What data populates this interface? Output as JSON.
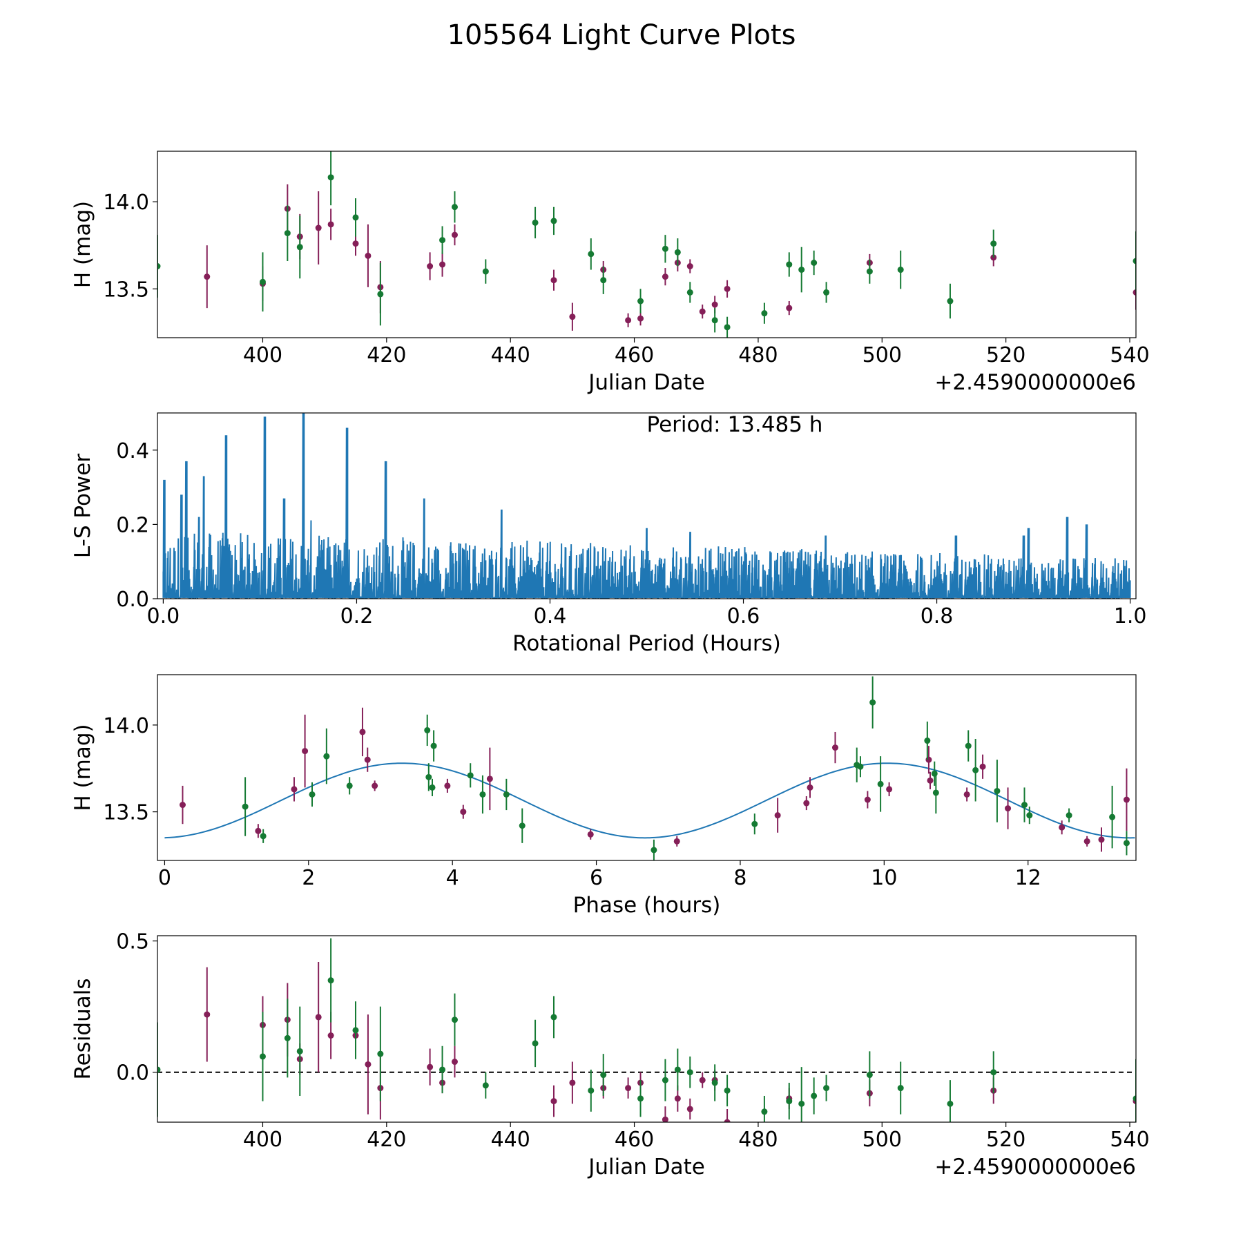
{
  "title": "105564 Light Curve Plots",
  "colors": {
    "series_a": "#851f58",
    "series_b": "#157a33",
    "line": "#1f77b4",
    "axes": "#000000"
  },
  "chart_data": [
    {
      "type": "scatter",
      "id": "lightcurve",
      "xlabel": "Julian Date",
      "ylabel": "H (mag)",
      "offset_label": "+2.4590000000e6",
      "xlim": [
        383,
        541
      ],
      "ylim": [
        13.22,
        14.29
      ],
      "xticks": [
        "400",
        "420",
        "440",
        "460",
        "480",
        "500",
        "520",
        "540"
      ],
      "yticks": [
        "13.5",
        "14.0"
      ],
      "series": [
        {
          "name": "series_a",
          "color": "#851f58",
          "points": [
            [
              391,
              13.57,
              0.18
            ],
            [
              400,
              13.53,
              0.1
            ],
            [
              404,
              13.96,
              0.14
            ],
            [
              406,
              13.8,
              0.13
            ],
            [
              409,
              13.85,
              0.21
            ],
            [
              411,
              13.87,
              0.09
            ],
            [
              415,
              13.76,
              0.07
            ],
            [
              417,
              13.69,
              0.18
            ],
            [
              419,
              13.51,
              0.15
            ],
            [
              427,
              13.63,
              0.08
            ],
            [
              429,
              13.64,
              0.07
            ],
            [
              431,
              13.81,
              0.06
            ],
            [
              447,
              13.55,
              0.06
            ],
            [
              450,
              13.34,
              0.08
            ],
            [
              455,
              13.61,
              0.05
            ],
            [
              459,
              13.32,
              0.04
            ],
            [
              461,
              13.33,
              0.04
            ],
            [
              465,
              13.57,
              0.05
            ],
            [
              467,
              13.65,
              0.05
            ],
            [
              469,
              13.63,
              0.04
            ],
            [
              471,
              13.37,
              0.04
            ],
            [
              473,
              13.41,
              0.05
            ],
            [
              475,
              13.5,
              0.05
            ],
            [
              485,
              13.39,
              0.04
            ],
            [
              498,
              13.65,
              0.05
            ],
            [
              518,
              13.68,
              0.05
            ],
            [
              541,
              13.48,
              0.1
            ]
          ]
        },
        {
          "name": "series_b",
          "color": "#157a33",
          "points": [
            [
              383,
              13.63,
              0.18
            ],
            [
              400,
              13.54,
              0.17
            ],
            [
              404,
              13.82,
              0.16
            ],
            [
              406,
              13.74,
              0.18
            ],
            [
              411,
              14.14,
              0.16
            ],
            [
              415,
              13.91,
              0.11
            ],
            [
              419,
              13.47,
              0.18
            ],
            [
              429,
              13.78,
              0.08
            ],
            [
              431,
              13.97,
              0.09
            ],
            [
              436,
              13.6,
              0.07
            ],
            [
              444,
              13.88,
              0.09
            ],
            [
              447,
              13.89,
              0.08
            ],
            [
              453,
              13.7,
              0.09
            ],
            [
              455,
              13.55,
              0.08
            ],
            [
              461,
              13.43,
              0.07
            ],
            [
              465,
              13.73,
              0.08
            ],
            [
              467,
              13.71,
              0.08
            ],
            [
              469,
              13.48,
              0.06
            ],
            [
              473,
              13.32,
              0.07
            ],
            [
              475,
              13.28,
              0.06
            ],
            [
              481,
              13.36,
              0.06
            ],
            [
              485,
              13.64,
              0.07
            ],
            [
              487,
              13.61,
              0.13
            ],
            [
              489,
              13.65,
              0.07
            ],
            [
              491,
              13.48,
              0.06
            ],
            [
              498,
              13.6,
              0.07
            ],
            [
              503,
              13.61,
              0.11
            ],
            [
              511,
              13.43,
              0.1
            ],
            [
              518,
              13.76,
              0.08
            ],
            [
              541,
              13.66,
              0.17
            ]
          ]
        }
      ]
    },
    {
      "type": "line",
      "id": "periodogram",
      "xlabel": "Rotational Period (Hours)",
      "ylabel": "L-S Power",
      "annotation": "Period: 13.485 h",
      "xlim": [
        -0.006,
        1.006
      ],
      "ylim": [
        0,
        0.5
      ],
      "xticks": [
        "0.0",
        "0.2",
        "0.4",
        "0.6",
        "0.8",
        "1.0"
      ],
      "yticks": [
        "0.0",
        "0.2",
        "0.4"
      ],
      "baseline_peak": 0.06,
      "prominent_peaks": [
        [
          0.001,
          0.32
        ],
        [
          0.019,
          0.28
        ],
        [
          0.024,
          0.37
        ],
        [
          0.037,
          0.22
        ],
        [
          0.042,
          0.33
        ],
        [
          0.065,
          0.44
        ],
        [
          0.105,
          0.49
        ],
        [
          0.125,
          0.27
        ],
        [
          0.145,
          0.51
        ],
        [
          0.19,
          0.46
        ],
        [
          0.23,
          0.37
        ],
        [
          0.27,
          0.27
        ],
        [
          0.35,
          0.24
        ],
        [
          0.5,
          0.19
        ],
        [
          0.545,
          0.18
        ],
        [
          0.685,
          0.17
        ],
        [
          0.82,
          0.17
        ],
        [
          0.89,
          0.17
        ],
        [
          0.895,
          0.19
        ],
        [
          0.935,
          0.22
        ],
        [
          0.955,
          0.2
        ]
      ]
    },
    {
      "type": "scatter",
      "id": "phased",
      "xlabel": "Phase (hours)",
      "ylabel": "H (mag)",
      "xlim": [
        -0.1,
        13.5
      ],
      "ylim": [
        13.22,
        14.29
      ],
      "xticks": [
        "0",
        "2",
        "4",
        "6",
        "8",
        "10",
        "12"
      ],
      "yticks": [
        "13.5",
        "14.0"
      ],
      "model": {
        "mean": 13.565,
        "amplitude": 0.215,
        "period_hours": 13.485,
        "phase_of_max": 3.3
      },
      "series": [
        {
          "name": "series_a",
          "color": "#851f58",
          "points": [
            [
              0.25,
              13.54,
              0.11
            ],
            [
              1.3,
              13.39,
              0.04
            ],
            [
              1.8,
              13.63,
              0.07
            ],
            [
              1.95,
              13.85,
              0.21
            ],
            [
              2.75,
              13.96,
              0.14
            ],
            [
              2.82,
              13.8,
              0.07
            ],
            [
              2.92,
              13.65,
              0.03
            ],
            [
              3.93,
              13.65,
              0.04
            ],
            [
              4.15,
              13.5,
              0.04
            ],
            [
              4.52,
              13.69,
              0.18
            ],
            [
              5.92,
              13.37,
              0.03
            ],
            [
              7.12,
              13.33,
              0.03
            ],
            [
              8.52,
              13.48,
              0.1
            ],
            [
              8.92,
              13.55,
              0.04
            ],
            [
              8.97,
              13.64,
              0.06
            ],
            [
              9.32,
              13.87,
              0.09
            ],
            [
              9.77,
              13.57,
              0.05
            ],
            [
              10.07,
              13.63,
              0.04
            ],
            [
              10.62,
              13.8,
              0.08
            ],
            [
              10.64,
              13.68,
              0.05
            ],
            [
              11.15,
              13.6,
              0.04
            ],
            [
              11.37,
              13.76,
              0.07
            ],
            [
              11.72,
              13.52,
              0.12
            ],
            [
              12.47,
              13.41,
              0.04
            ],
            [
              12.82,
              13.33,
              0.03
            ],
            [
              13.02,
              13.34,
              0.07
            ],
            [
              13.37,
              13.57,
              0.18
            ]
          ]
        },
        {
          "name": "series_b",
          "color": "#157a33",
          "points": [
            [
              1.12,
              13.53,
              0.17
            ],
            [
              1.37,
              13.36,
              0.04
            ],
            [
              2.05,
              13.6,
              0.07
            ],
            [
              2.25,
              13.82,
              0.16
            ],
            [
              2.57,
              13.65,
              0.05
            ],
            [
              3.65,
              13.97,
              0.09
            ],
            [
              3.67,
              13.7,
              0.08
            ],
            [
              3.72,
              13.64,
              0.05
            ],
            [
              3.74,
              13.88,
              0.09
            ],
            [
              4.25,
              13.71,
              0.07
            ],
            [
              4.42,
              13.6,
              0.11
            ],
            [
              4.75,
              13.6,
              0.09
            ],
            [
              4.97,
              13.42,
              0.1
            ],
            [
              6.8,
              13.28,
              0.06
            ],
            [
              8.2,
              13.43,
              0.06
            ],
            [
              9.62,
              13.77,
              0.1
            ],
            [
              9.67,
              13.76,
              0.06
            ],
            [
              9.84,
              14.13,
              0.15
            ],
            [
              9.95,
              13.66,
              0.16
            ],
            [
              10.6,
              13.91,
              0.11
            ],
            [
              10.7,
              13.72,
              0.07
            ],
            [
              10.72,
              13.61,
              0.12
            ],
            [
              11.17,
              13.88,
              0.09
            ],
            [
              11.27,
              13.74,
              0.18
            ],
            [
              11.57,
              13.62,
              0.18
            ],
            [
              11.95,
              13.54,
              0.1
            ],
            [
              12.02,
              13.48,
              0.05
            ],
            [
              12.57,
              13.48,
              0.04
            ],
            [
              13.17,
              13.47,
              0.18
            ],
            [
              13.37,
              13.32,
              0.07
            ]
          ]
        }
      ]
    },
    {
      "type": "scatter",
      "id": "residuals",
      "xlabel": "Julian Date",
      "ylabel": "Residuals",
      "offset_label": "+2.4590000000e6",
      "xlim": [
        383,
        541
      ],
      "ylim": [
        -0.19,
        0.52
      ],
      "xticks": [
        "400",
        "420",
        "440",
        "460",
        "480",
        "500",
        "520",
        "540"
      ],
      "yticks": [
        "0.0",
        "0.5"
      ],
      "reference_line": 0,
      "series": [
        {
          "name": "series_a",
          "color": "#851f58",
          "points": [
            [
              391,
              0.22,
              0.18
            ],
            [
              400,
              0.18,
              0.11
            ],
            [
              404,
              0.2,
              0.14
            ],
            [
              406,
              0.05,
              0.06
            ],
            [
              409,
              0.21,
              0.21
            ],
            [
              411,
              0.14,
              0.09
            ],
            [
              415,
              0.14,
              0.06
            ],
            [
              417,
              0.03,
              0.19
            ],
            [
              419,
              -0.06,
              0.12
            ],
            [
              427,
              0.02,
              0.07
            ],
            [
              429,
              -0.04,
              0.04
            ],
            [
              431,
              0.04,
              0.06
            ],
            [
              447,
              -0.11,
              0.06
            ],
            [
              450,
              -0.04,
              0.08
            ],
            [
              455,
              -0.06,
              0.04
            ],
            [
              459,
              -0.06,
              0.04
            ],
            [
              461,
              -0.04,
              0.04
            ],
            [
              465,
              -0.18,
              0.05
            ],
            [
              467,
              -0.1,
              0.05
            ],
            [
              469,
              -0.14,
              0.04
            ],
            [
              471,
              -0.03,
              0.03
            ],
            [
              473,
              -0.03,
              0.04
            ],
            [
              475,
              -0.19,
              0.05
            ],
            [
              485,
              -0.1,
              0.04
            ],
            [
              498,
              -0.08,
              0.05
            ],
            [
              518,
              -0.07,
              0.05
            ],
            [
              541,
              -0.11,
              0.1
            ]
          ]
        },
        {
          "name": "series_b",
          "color": "#157a33",
          "points": [
            [
              383,
              0.01,
              0.18
            ],
            [
              400,
              0.06,
              0.17
            ],
            [
              404,
              0.13,
              0.15
            ],
            [
              406,
              0.08,
              0.17
            ],
            [
              411,
              0.35,
              0.16
            ],
            [
              415,
              0.16,
              0.11
            ],
            [
              419,
              0.07,
              0.18
            ],
            [
              429,
              0.01,
              0.09
            ],
            [
              431,
              0.2,
              0.1
            ],
            [
              436,
              -0.05,
              0.05
            ],
            [
              444,
              0.11,
              0.09
            ],
            [
              447,
              0.21,
              0.08
            ],
            [
              453,
              -0.07,
              0.08
            ],
            [
              455,
              -0.01,
              0.08
            ],
            [
              461,
              -0.1,
              0.07
            ],
            [
              465,
              -0.03,
              0.08
            ],
            [
              467,
              0.01,
              0.08
            ],
            [
              469,
              0,
              0.06
            ],
            [
              473,
              -0.04,
              0.07
            ],
            [
              475,
              -0.07,
              0.06
            ],
            [
              481,
              -0.15,
              0.06
            ],
            [
              485,
              -0.11,
              0.07
            ],
            [
              487,
              -0.12,
              0.14
            ],
            [
              489,
              -0.09,
              0.07
            ],
            [
              491,
              -0.06,
              0.05
            ],
            [
              498,
              -0.01,
              0.09
            ],
            [
              503,
              -0.06,
              0.1
            ],
            [
              511,
              -0.12,
              0.09
            ],
            [
              518,
              0,
              0.08
            ],
            [
              541,
              -0.1,
              0.15
            ]
          ]
        }
      ]
    }
  ]
}
